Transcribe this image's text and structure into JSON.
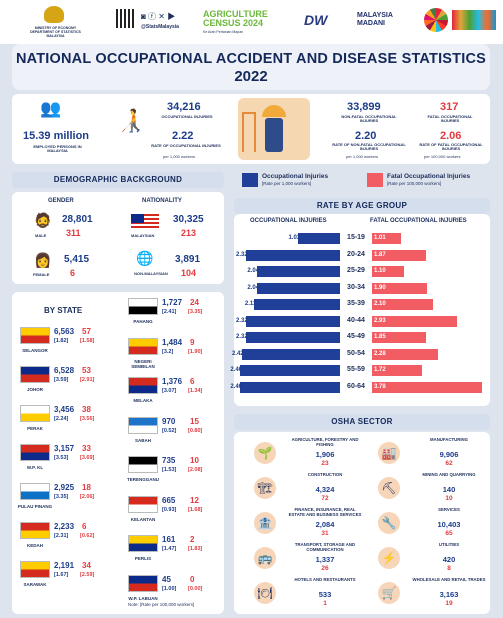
{
  "header": {
    "ministry": "MINISTRY OF ECONOMY\nDEPARTMENT OF STATISTICS MALAYSIA",
    "social": "@StatsMalaysia",
    "census": "AGRICULTURE CENSUS 2024",
    "census_sub": "Ke Arah Pertanian Mapan",
    "madani": "MALAYSIA MADANI"
  },
  "title": "NATIONAL OCCUPATIONAL ACCIDENT AND DISEASE STATISTICS",
  "year": "2022",
  "summary": {
    "employed": "15.39 million",
    "employed_label": "EMPLOYED PERSONS IN MALAYSIA",
    "occ": "34,216",
    "occ_label": "OCCUPATIONAL INJURIES",
    "rate": "2.22",
    "rate_label": "RATE OF OCCUPATIONAL INJURIES",
    "rate_unit": "per 1,000 workers",
    "nonfatal": "33,899",
    "nonfatal_label": "NON-FATAL OCCUPATIONAL INJURIES",
    "fatal": "317",
    "fatal_label": "FATAL OCCUPATIONAL INJURIES",
    "nf_rate": "2.20",
    "nf_rate_label": "RATE OF NON-FATAL OCCUPATIONAL INJURIES",
    "nf_unit": "per 1,000 workers",
    "f_rate": "2.06",
    "f_rate_label": "RATE OF FATAL OCCUPATIONAL INJURIES",
    "f_unit": "per 100,000 workers"
  },
  "demo": {
    "title": "DEMOGRAPHIC BACKGROUND",
    "gender": "GENDER",
    "nationality": "NATIONALITY",
    "male": "MALE",
    "male_a": "28,801",
    "male_b": "311",
    "female": "FEMALE",
    "female_a": "5,415",
    "female_b": "6",
    "mys": "MALAYSIAN",
    "mys_a": "30,325",
    "mys_b": "213",
    "non": "NON-MALAYSIAN",
    "non_a": "3,891",
    "non_b": "104"
  },
  "legend": {
    "occ": "Occupational Injuries",
    "occ_sub": "[Rate per 1,000 workers]",
    "fatal": "Fatal Occupational Injuries",
    "fatal_sub": "[Rate per 100,000 workers]",
    "col_colors": {
      "occ": "#1f3f99",
      "fatal": "#f25c63"
    }
  },
  "age": {
    "title": "RATE BY AGE GROUP",
    "left": "OCCUPATIONAL INJURIES",
    "right": "FATAL OCCUPATIONAL INJURIES",
    "groups": [
      "15-19",
      "20-24",
      "25-29",
      "30-34",
      "35-39",
      "40-44",
      "45-49",
      "50-54",
      "55-59",
      "60-64"
    ],
    "occ": [
      "1.03",
      "2.32",
      "2.04",
      "2.04",
      "2.11",
      "2.32",
      "2.32",
      "2.42",
      "2.46",
      "2.46"
    ],
    "fatal": [
      "1.01",
      "1.87",
      "1.10",
      "1.90",
      "2.10",
      "2.93",
      "1.85",
      "2.28",
      "1.72",
      "3.78"
    ]
  },
  "state": {
    "title": "BY STATE",
    "note": "Note: [Rate per 100,000 workers]",
    "rows": [
      {
        "name": "SELANGOR",
        "a": "6,563",
        "b": "57",
        "ra": "[1.82]",
        "rb": "[1.58]"
      },
      {
        "name": "JOHOR",
        "a": "6,528",
        "b": "53",
        "ra": "[3.59]",
        "rb": "[2.91]"
      },
      {
        "name": "PERAK",
        "a": "3,456",
        "b": "38",
        "ra": "[2.24]",
        "rb": "[3.56]"
      },
      {
        "name": "W.P. KL",
        "a": "3,157",
        "b": "33",
        "ra": "[3.53]",
        "rb": "[3.69]"
      },
      {
        "name": "PULAU PINANG",
        "a": "2,925",
        "b": "18",
        "ra": "[3.35]",
        "rb": "[2.06]"
      },
      {
        "name": "KEDAH",
        "a": "2,233",
        "b": "6",
        "ra": "[2.31]",
        "rb": "[0.62]"
      },
      {
        "name": "SARAWAK",
        "a": "2,191",
        "b": "34",
        "ra": "[1.67]",
        "rb": "[2.59]"
      },
      {
        "name": "PAHANG",
        "a": "1,727",
        "b": "24",
        "ra": "[2.41]",
        "rb": "[3.35]"
      },
      {
        "name": "NEGERI SEMBILAN",
        "a": "1,484",
        "b": "9",
        "ra": "[3.2]",
        "rb": "[1.90]"
      },
      {
        "name": "MELAKA",
        "a": "1,376",
        "b": "6",
        "ra": "[3.07]",
        "rb": "[1.34]"
      },
      {
        "name": "SABAH",
        "a": "970",
        "b": "15",
        "ra": "[0.52]",
        "rb": "[0.80]"
      },
      {
        "name": "TERENGGANU",
        "a": "735",
        "b": "10",
        "ra": "[1.53]",
        "rb": "[2.08]"
      },
      {
        "name": "KELANTAN",
        "a": "665",
        "b": "12",
        "ra": "[0.93]",
        "rb": "[1.68]"
      },
      {
        "name": "PERLIS",
        "a": "161",
        "b": "2",
        "ra": "[1.47]",
        "rb": "[1.83]"
      },
      {
        "name": "W.P. LABUAN",
        "a": "45",
        "b": "0",
        "ra": "[1.00]",
        "rb": "[0.00]"
      }
    ]
  },
  "osha": {
    "title": "OSHA SECTOR",
    "rows": [
      {
        "name": "AGRICULTURE, FORESTRY AND FISHING",
        "a": "1,906",
        "b": "23"
      },
      {
        "name": "CONSTRUCTION",
        "a": "4,324",
        "b": "72"
      },
      {
        "name": "FINANCE, INSURANCE, REAL ESTATE AND BUSINESS SERVICES",
        "a": "2,084",
        "b": "31"
      },
      {
        "name": "TRANSPORT, STORAGE AND COMMUNICATION",
        "a": "1,337",
        "b": "26"
      },
      {
        "name": "HOTELS AND RESTAURANTS",
        "a": "533",
        "b": "1"
      },
      {
        "name": "MANUFACTURING",
        "a": "9,906",
        "b": "62"
      },
      {
        "name": "MINING AND QUARRYING",
        "a": "140",
        "b": "10"
      },
      {
        "name": "SERVICES",
        "a": "10,403",
        "b": "65"
      },
      {
        "name": "UTILITIES",
        "a": "420",
        "b": "8"
      },
      {
        "name": "WHOLESALE AND RETAIL TRADES",
        "a": "3,163",
        "b": "19"
      }
    ]
  }
}
